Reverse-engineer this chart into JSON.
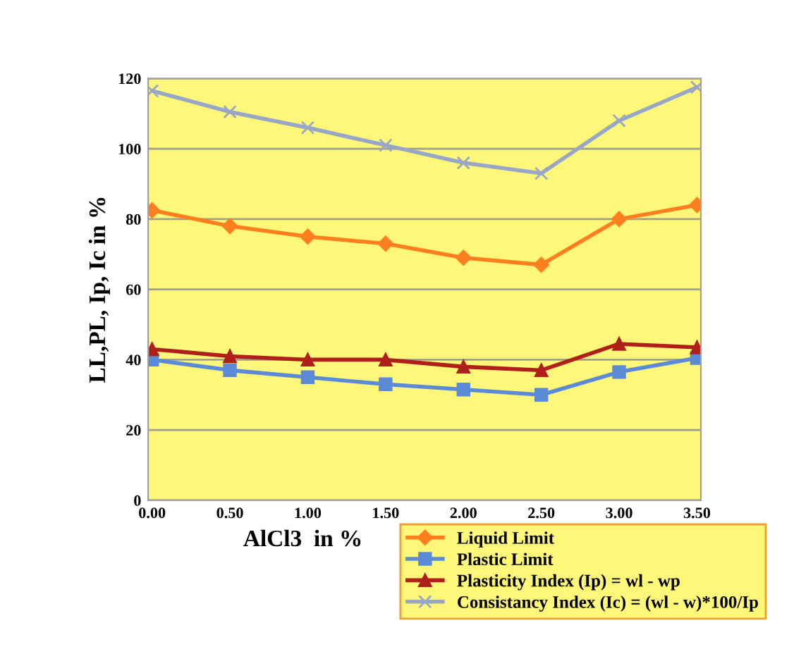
{
  "chart_data": {
    "type": "line",
    "xlabel": "AlCl3  in %",
    "ylabel": "LL,PL, Ip, Ic in %",
    "categories": [
      "0.00",
      "0.50",
      "1.00",
      "1.50",
      "2.00",
      "2.50",
      "3.00",
      "3.50"
    ],
    "series": [
      {
        "name": "Liquid Limit",
        "color": "#ff7f1e",
        "marker": "diamond",
        "values": [
          82.5,
          78,
          75,
          73,
          69,
          67,
          80,
          84
        ]
      },
      {
        "name": "Plastic Limit",
        "color": "#5b8ad6",
        "marker": "square",
        "values": [
          40,
          37,
          35,
          33,
          31.5,
          30,
          36.5,
          40.5
        ]
      },
      {
        "name": "Plasticity Index (Ip) = wl - wp",
        "color": "#b0201a",
        "marker": "triangle",
        "values": [
          43,
          41,
          40,
          40,
          38,
          37,
          44.5,
          43.5
        ]
      },
      {
        "name": "Consistancy Index (Ic) = (wl - w)*100/Ip",
        "color": "#98a6c8",
        "marker": "cross",
        "values": [
          116.5,
          110.5,
          106,
          101,
          96,
          93,
          108,
          117.5
        ]
      }
    ],
    "ylim": [
      0,
      120
    ],
    "yticks": [
      0,
      20,
      40,
      60,
      80,
      100,
      120
    ],
    "grid": "y",
    "legend": "bottom right",
    "line_style": "solid"
  }
}
